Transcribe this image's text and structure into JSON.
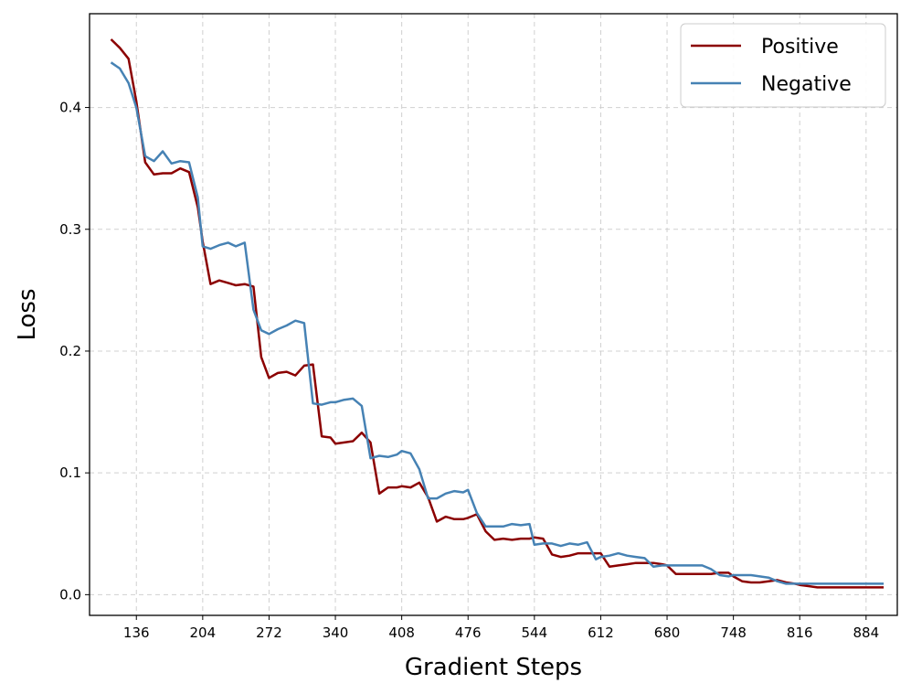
{
  "chart_data": {
    "type": "line",
    "title": "",
    "xlabel": "Gradient Steps",
    "ylabel": "Loss",
    "xlim": [
      88,
      916
    ],
    "ylim": [
      -0.017,
      0.477
    ],
    "xticks": [
      136,
      204,
      272,
      340,
      408,
      476,
      544,
      612,
      680,
      748,
      816,
      884
    ],
    "yticks": [
      0.0,
      0.1,
      0.2,
      0.3,
      0.4
    ],
    "grid": true,
    "legend_position": "top-right",
    "colors": {
      "Positive": "#8b0000",
      "Negative": "#4682b4"
    },
    "x": [
      110,
      119,
      128,
      136,
      145,
      154,
      163,
      172,
      181,
      190,
      199,
      204,
      212,
      221,
      230,
      238,
      247,
      256,
      264,
      272,
      281,
      290,
      299,
      308,
      317,
      326,
      335,
      340,
      349,
      358,
      367,
      376,
      385,
      394,
      403,
      408,
      417,
      426,
      435,
      444,
      453,
      462,
      471,
      476,
      485,
      494,
      503,
      512,
      521,
      530,
      539,
      544,
      553,
      562,
      571,
      580,
      589,
      598,
      607,
      612,
      621,
      630,
      639,
      648,
      657,
      666,
      675,
      680,
      689,
      698,
      707,
      716,
      725,
      734,
      743,
      748,
      757,
      766,
      775,
      784,
      793,
      802,
      811,
      816,
      825,
      834,
      843,
      852,
      861,
      870,
      879,
      884,
      893,
      902
    ],
    "series": [
      {
        "name": "Positive",
        "values": [
          0.456,
          0.449,
          0.44,
          0.405,
          0.355,
          0.345,
          0.346,
          0.346,
          0.35,
          0.347,
          0.318,
          0.29,
          0.255,
          0.258,
          0.256,
          0.254,
          0.255,
          0.253,
          0.195,
          0.178,
          0.182,
          0.183,
          0.18,
          0.188,
          0.189,
          0.13,
          0.129,
          0.124,
          0.125,
          0.126,
          0.133,
          0.125,
          0.083,
          0.088,
          0.088,
          0.089,
          0.088,
          0.092,
          0.08,
          0.06,
          0.064,
          0.062,
          0.062,
          0.063,
          0.066,
          0.052,
          0.045,
          0.046,
          0.045,
          0.046,
          0.046,
          0.047,
          0.046,
          0.033,
          0.031,
          0.032,
          0.034,
          0.034,
          0.034,
          0.034,
          0.023,
          0.024,
          0.025,
          0.026,
          0.026,
          0.026,
          0.025,
          0.024,
          0.017,
          0.017,
          0.017,
          0.017,
          0.017,
          0.018,
          0.018,
          0.015,
          0.011,
          0.01,
          0.01,
          0.011,
          0.012,
          0.01,
          0.009,
          0.008,
          0.007,
          0.006,
          0.006,
          0.006,
          0.006,
          0.006,
          0.006,
          0.006,
          0.006,
          0.006
        ]
      },
      {
        "name": "Negative",
        "values": [
          0.437,
          0.432,
          0.42,
          0.4,
          0.36,
          0.356,
          0.364,
          0.354,
          0.356,
          0.355,
          0.326,
          0.286,
          0.284,
          0.287,
          0.289,
          0.286,
          0.289,
          0.234,
          0.217,
          0.214,
          0.218,
          0.221,
          0.225,
          0.223,
          0.157,
          0.156,
          0.158,
          0.158,
          0.16,
          0.161,
          0.155,
          0.112,
          0.114,
          0.113,
          0.115,
          0.118,
          0.116,
          0.103,
          0.079,
          0.079,
          0.083,
          0.085,
          0.084,
          0.086,
          0.067,
          0.056,
          0.056,
          0.056,
          0.058,
          0.057,
          0.058,
          0.041,
          0.042,
          0.042,
          0.04,
          0.042,
          0.041,
          0.043,
          0.029,
          0.031,
          0.032,
          0.034,
          0.032,
          0.031,
          0.03,
          0.023,
          0.024,
          0.024,
          0.024,
          0.024,
          0.024,
          0.024,
          0.021,
          0.016,
          0.015,
          0.016,
          0.016,
          0.016,
          0.015,
          0.014,
          0.011,
          0.009,
          0.009,
          0.009,
          0.009,
          0.009,
          0.009,
          0.009,
          0.009,
          0.009,
          0.009,
          0.009,
          0.009,
          0.009
        ]
      }
    ]
  }
}
